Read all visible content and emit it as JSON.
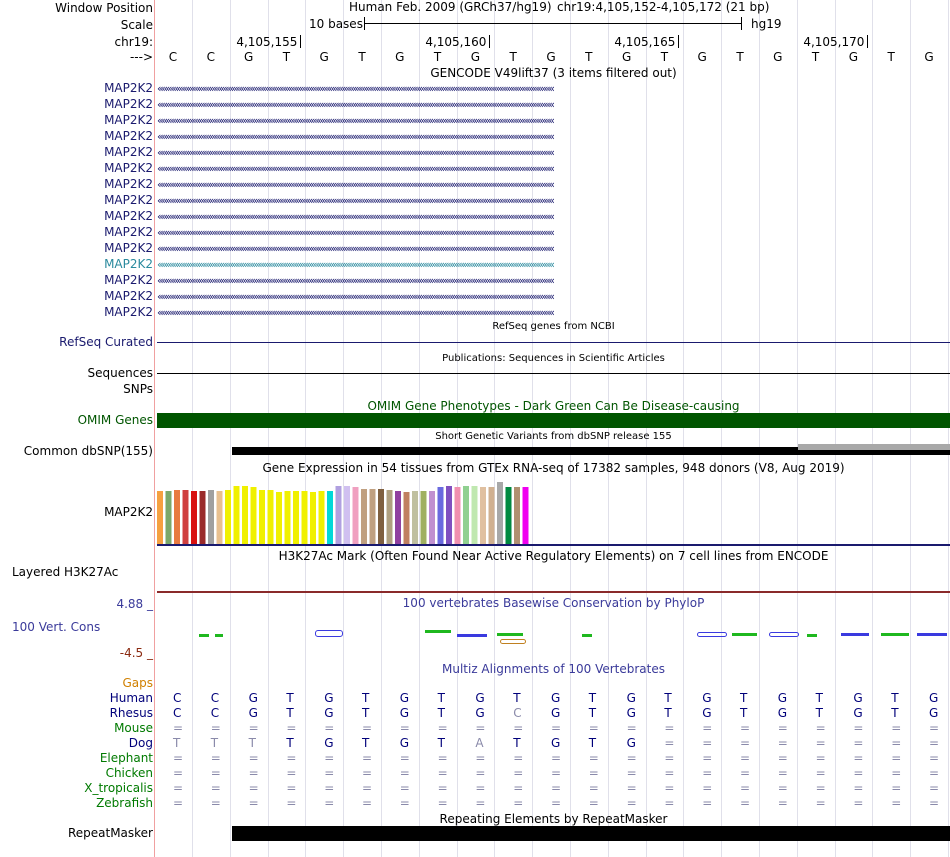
{
  "header": {
    "assembly_title": "Human Feb. 2009 (GRCh37/hg19)",
    "position": "chr19:4,105,152-4,105,172 (21 bp)",
    "scale_label": "10 bases",
    "db_label": "hg19",
    "strand_arrow": "--->"
  },
  "ruler": {
    "ticks": [
      "4,105,155",
      "4,105,160",
      "4,105,165",
      "4,105,170"
    ]
  },
  "labels": {
    "window_position": "Window Position",
    "scale": "Scale",
    "chrom": "chr19:",
    "refseq": "RefSeq Curated",
    "sequences": "Sequences",
    "snps": "SNPs",
    "omim": "OMIM Genes",
    "dbsnp": "Common dbSNP(155)",
    "gtex_gene": "MAP2K2",
    "h3k27ac": "Layered H3K27Ac",
    "cons_max": "4.88 _",
    "cons": "100 Vert. Cons",
    "cons_min": "-4.5 _",
    "gaps": "Gaps",
    "repeatmasker": "RepeatMasker"
  },
  "sequence": [
    "C",
    "C",
    "G",
    "T",
    "G",
    "T",
    "G",
    "T",
    "G",
    "T",
    "G",
    "T",
    "G",
    "T",
    "G",
    "T",
    "G",
    "T",
    "G",
    "T",
    "G"
  ],
  "gencode": {
    "title": "GENCODE V49lift37 (3 items filtered out)",
    "genes": [
      "MAP2K2",
      "MAP2K2",
      "MAP2K2",
      "MAP2K2",
      "MAP2K2",
      "MAP2K2",
      "MAP2K2",
      "MAP2K2",
      "MAP2K2",
      "MAP2K2",
      "MAP2K2",
      "MAP2K2",
      "MAP2K2",
      "MAP2K2",
      "MAP2K2"
    ],
    "highlighted_index": 11,
    "colors": {
      "gene": "#1a1a6e",
      "highlight": "#2a8a9e"
    }
  },
  "track_titles": {
    "refseq": "RefSeq genes from NCBI",
    "publications": "Publications: Sequences in Scientific Articles",
    "omim": "OMIM Gene Phenotypes - Dark Green Can Be Disease-causing",
    "dbsnp": "Short Genetic Variants from dbSNP release 155",
    "gtex": "Gene Expression in 54 tissues from GTEx RNA-seq of 17382 samples, 948 donors (V8, Aug 2019)",
    "h3k27ac": "H3K27Ac Mark (Often Found Near Active Regulatory Elements) on 7 cell lines from ENCODE",
    "phylop": "100 vertebrates Basewise Conservation by PhyloP",
    "multiz": "Multiz Alignments of 100 Vertebrates",
    "repeatmasker": "Repeating Elements by RepeatMasker"
  },
  "colors": {
    "omim_green": "#005500",
    "phylop_blue": "#3a3a9a",
    "cons_green": "#1fb81f",
    "gaps_orange": "#d08000",
    "species_green": "#007a00",
    "species_blue": "#00007a",
    "ruler_blue": "#000080"
  },
  "gtex_colors": [
    "#f5a040",
    "#7aa86a",
    "#e87a40",
    "#d04040",
    "#d81010",
    "#9a2a2a",
    "#a0a0a0",
    "#e8c090",
    "#f0f000",
    "#f0f000",
    "#f0f000",
    "#f0f000",
    "#f0f000",
    "#f0f000",
    "#f0f000",
    "#f0f000",
    "#f0f000",
    "#f0f000",
    "#f0f000",
    "#f0f000",
    "#00d8d8",
    "#b0a0e0",
    "#d0c0f0",
    "#f0a0c0",
    "#c0a080",
    "#c0a080",
    "#806040",
    "#b0a080",
    "#9040a0",
    "#c08060",
    "#c0c0a0",
    "#a0b060",
    "#c090d0",
    "#6a6adf",
    "#8050c0",
    "#f090b0",
    "#90d090",
    "#c0e8b0",
    "#e0c0a0",
    "#d0b090",
    "#a8a8a8",
    "#008a40",
    "#b09070",
    "#f000f0"
  ],
  "gtex_levels": [
    0.95,
    0.95,
    0.96,
    0.96,
    0.95,
    0.95,
    0.96,
    0.94,
    0.96,
    1.03,
    1.03,
    1.01,
    0.96,
    0.96,
    0.93,
    0.94,
    0.94,
    0.94,
    0.93,
    0.94,
    0.95,
    1.04,
    1.04,
    1.02,
    0.99,
    0.99,
    0.98,
    0.96,
    0.94,
    0.93,
    0.94,
    0.94,
    0.94,
    1.02,
    1.03,
    1.02,
    1.03,
    1.03,
    1.02,
    1.02,
    1.1,
    1.01,
    1.01,
    1.01
  ],
  "species": [
    {
      "name": "Human",
      "color": "#00007a",
      "bases": [
        "C",
        "C",
        "G",
        "T",
        "G",
        "T",
        "G",
        "T",
        "G",
        "T",
        "G",
        "T",
        "G",
        "T",
        "G",
        "T",
        "G",
        "T",
        "G",
        "T",
        "G"
      ]
    },
    {
      "name": "Rhesus",
      "color": "#00007a",
      "bases": [
        "C",
        "C",
        "G",
        "T",
        "G",
        "T",
        "G",
        "T",
        "G",
        "C",
        "G",
        "T",
        "G",
        "T",
        "G",
        "T",
        "G",
        "T",
        "G",
        "T",
        "G"
      ]
    },
    {
      "name": "Mouse",
      "color": "#007a00",
      "bases": [
        "=",
        "=",
        "=",
        "=",
        "=",
        "=",
        "=",
        "=",
        "=",
        "=",
        "=",
        "=",
        "=",
        "=",
        "=",
        "=",
        "=",
        "=",
        "=",
        "=",
        "="
      ]
    },
    {
      "name": "Dog",
      "color": "#00007a",
      "bases": [
        "T",
        "T",
        "T",
        "T",
        "G",
        "T",
        "G",
        "T",
        "A",
        "T",
        "G",
        "T",
        "G",
        "=",
        "=",
        "=",
        "=",
        "=",
        "=",
        "=",
        "="
      ]
    },
    {
      "name": "Elephant",
      "color": "#007a00",
      "bases": [
        "=",
        "=",
        "=",
        "=",
        "=",
        "=",
        "=",
        "=",
        "=",
        "=",
        "=",
        "=",
        "=",
        "=",
        "=",
        "=",
        "=",
        "=",
        "=",
        "=",
        "="
      ]
    },
    {
      "name": "Chicken",
      "color": "#007a00",
      "bases": [
        "=",
        "=",
        "=",
        "=",
        "=",
        "=",
        "=",
        "=",
        "=",
        "=",
        "=",
        "=",
        "=",
        "=",
        "=",
        "=",
        "=",
        "=",
        "=",
        "=",
        "="
      ]
    },
    {
      "name": "X_tropicalis",
      "color": "#007a00",
      "bases": [
        "=",
        "=",
        "=",
        "=",
        "=",
        "=",
        "=",
        "=",
        "=",
        "=",
        "=",
        "=",
        "=",
        "=",
        "=",
        "=",
        "=",
        "=",
        "=",
        "=",
        "="
      ]
    },
    {
      "name": "Zebrafish",
      "color": "#007a00",
      "bases": [
        "=",
        "=",
        "=",
        "=",
        "=",
        "=",
        "=",
        "=",
        "=",
        "=",
        "=",
        "=",
        "=",
        "=",
        "=",
        "=",
        "=",
        "=",
        "=",
        "=",
        "="
      ]
    }
  ]
}
